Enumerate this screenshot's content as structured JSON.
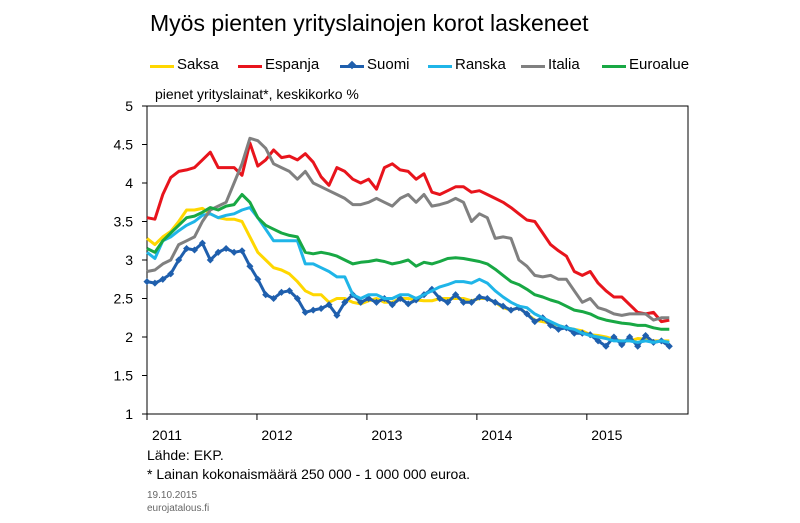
{
  "chart_data": {
    "type": "line",
    "title": "Myös pienten yrityslainojen korot laskeneet",
    "subtitle": "pienet yrityslainat*, keskikorko %",
    "source": "Lähde: EKP.",
    "footnote": "* Lainan kokonaismäärä 250 000 - 1 000 000 euroa.",
    "date": "19.10.2015",
    "site": "eurojatalous.fi",
    "ylim": [
      1,
      5
    ],
    "yticks": [
      "1",
      "1.5",
      "2",
      "2.5",
      "3",
      "3.5",
      "4",
      "4.5",
      "5"
    ],
    "xlim": [
      2011.0,
      2015.92
    ],
    "xticks": [
      {
        "label": "2011",
        "pos": 2011.0
      },
      {
        "label": "2012",
        "pos": 2012.0
      },
      {
        "label": "2013",
        "pos": 2013.0
      },
      {
        "label": "2014",
        "pos": 2014.0
      },
      {
        "label": "2015",
        "pos": 2015.0
      }
    ],
    "grid": false,
    "legend_position": "top",
    "series": [
      {
        "name": "Saksa",
        "color": "#FFD700",
        "marker": false,
        "values": [
          3.28,
          3.2,
          3.3,
          3.37,
          3.5,
          3.65,
          3.65,
          3.67,
          3.6,
          3.55,
          3.53,
          3.53,
          3.5,
          3.3,
          3.1,
          3.0,
          2.9,
          2.87,
          2.82,
          2.72,
          2.6,
          2.55,
          2.55,
          2.45,
          2.5,
          2.5,
          2.45,
          2.43,
          2.47,
          2.5,
          2.45,
          2.45,
          2.5,
          2.5,
          2.48,
          2.47,
          2.47,
          2.5,
          2.5,
          2.5,
          2.5,
          2.47,
          2.5,
          2.5,
          2.45,
          2.38,
          2.35,
          2.38,
          2.3,
          2.22,
          2.2,
          2.18,
          2.15,
          2.12,
          2.1,
          2.08,
          2.03,
          2.02,
          2.0,
          1.97,
          1.95,
          1.95,
          1.98,
          1.97,
          1.95,
          1.95,
          1.95
        ]
      },
      {
        "name": "Espanja",
        "color": "#E8141C",
        "marker": false,
        "values": [
          3.55,
          3.53,
          3.85,
          4.07,
          4.15,
          4.17,
          4.2,
          4.3,
          4.4,
          4.2,
          4.2,
          4.2,
          4.1,
          4.52,
          4.22,
          4.3,
          4.43,
          4.33,
          4.35,
          4.3,
          4.38,
          4.27,
          4.08,
          3.97,
          4.2,
          4.15,
          4.05,
          4.0,
          4.05,
          3.92,
          4.2,
          4.25,
          4.17,
          4.15,
          4.05,
          4.12,
          3.88,
          3.85,
          3.9,
          3.95,
          3.95,
          3.88,
          3.9,
          3.85,
          3.8,
          3.75,
          3.68,
          3.6,
          3.52,
          3.5,
          3.35,
          3.2,
          3.12,
          3.05,
          2.85,
          2.8,
          2.85,
          2.7,
          2.6,
          2.52,
          2.52,
          2.42,
          2.32,
          2.3,
          2.32,
          2.2,
          2.22
        ]
      },
      {
        "name": "Suomi",
        "color": "#1F5FAD",
        "marker": true,
        "values": [
          2.72,
          2.7,
          2.75,
          2.82,
          3.0,
          3.15,
          3.13,
          3.22,
          3.0,
          3.1,
          3.15,
          3.1,
          3.12,
          2.92,
          2.75,
          2.55,
          2.5,
          2.58,
          2.6,
          2.5,
          2.32,
          2.35,
          2.37,
          2.42,
          2.28,
          2.45,
          2.55,
          2.45,
          2.5,
          2.45,
          2.5,
          2.42,
          2.5,
          2.43,
          2.48,
          2.55,
          2.62,
          2.5,
          2.45,
          2.55,
          2.45,
          2.45,
          2.52,
          2.5,
          2.45,
          2.4,
          2.35,
          2.38,
          2.3,
          2.2,
          2.25,
          2.15,
          2.1,
          2.12,
          2.05,
          2.05,
          2.03,
          1.95,
          1.88,
          2.0,
          1.9,
          2.0,
          1.88,
          2.02,
          1.93,
          1.95,
          1.88
        ]
      },
      {
        "name": "Ranska",
        "color": "#1FB5E8",
        "marker": false,
        "values": [
          3.1,
          3.02,
          3.25,
          3.3,
          3.38,
          3.45,
          3.5,
          3.58,
          3.6,
          3.55,
          3.58,
          3.6,
          3.65,
          3.68,
          3.55,
          3.4,
          3.25,
          3.25,
          3.25,
          3.25,
          2.95,
          2.95,
          2.9,
          2.85,
          2.78,
          2.78,
          2.55,
          2.5,
          2.55,
          2.55,
          2.5,
          2.5,
          2.55,
          2.55,
          2.5,
          2.55,
          2.6,
          2.65,
          2.68,
          2.72,
          2.72,
          2.7,
          2.75,
          2.7,
          2.6,
          2.52,
          2.45,
          2.4,
          2.38,
          2.3,
          2.25,
          2.2,
          2.15,
          2.12,
          2.1,
          2.05,
          2.02,
          2.0,
          1.98,
          1.95,
          1.95,
          1.95,
          1.93,
          1.95,
          1.93,
          1.95,
          1.93
        ]
      },
      {
        "name": "Italia",
        "color": "#808080",
        "marker": false,
        "values": [
          2.85,
          2.87,
          2.95,
          3.0,
          3.2,
          3.25,
          3.3,
          3.5,
          3.65,
          3.7,
          3.75,
          4.0,
          4.25,
          4.58,
          4.55,
          4.45,
          4.25,
          4.2,
          4.15,
          4.05,
          4.15,
          4.0,
          3.95,
          3.9,
          3.85,
          3.8,
          3.72,
          3.72,
          3.75,
          3.8,
          3.75,
          3.7,
          3.8,
          3.85,
          3.75,
          3.85,
          3.7,
          3.72,
          3.75,
          3.8,
          3.75,
          3.5,
          3.6,
          3.55,
          3.28,
          3.3,
          3.28,
          3.0,
          2.92,
          2.8,
          2.78,
          2.8,
          2.75,
          2.75,
          2.6,
          2.45,
          2.5,
          2.38,
          2.35,
          2.3,
          2.28,
          2.3,
          2.3,
          2.3,
          2.22,
          2.25,
          2.25
        ]
      },
      {
        "name": "Euroalue",
        "color": "#18A844",
        "marker": false,
        "values": [
          3.15,
          3.1,
          3.25,
          3.35,
          3.45,
          3.55,
          3.57,
          3.62,
          3.68,
          3.65,
          3.7,
          3.72,
          3.85,
          3.75,
          3.55,
          3.45,
          3.4,
          3.35,
          3.32,
          3.3,
          3.1,
          3.08,
          3.1,
          3.08,
          3.05,
          3.0,
          2.95,
          2.97,
          2.98,
          3.0,
          2.98,
          2.95,
          2.97,
          3.0,
          2.92,
          2.97,
          2.95,
          2.98,
          3.02,
          3.03,
          3.02,
          3.0,
          2.98,
          2.95,
          2.88,
          2.8,
          2.72,
          2.68,
          2.62,
          2.55,
          2.52,
          2.48,
          2.45,
          2.4,
          2.35,
          2.33,
          2.3,
          2.25,
          2.22,
          2.2,
          2.18,
          2.17,
          2.15,
          2.15,
          2.12,
          2.1,
          2.1
        ]
      }
    ]
  }
}
